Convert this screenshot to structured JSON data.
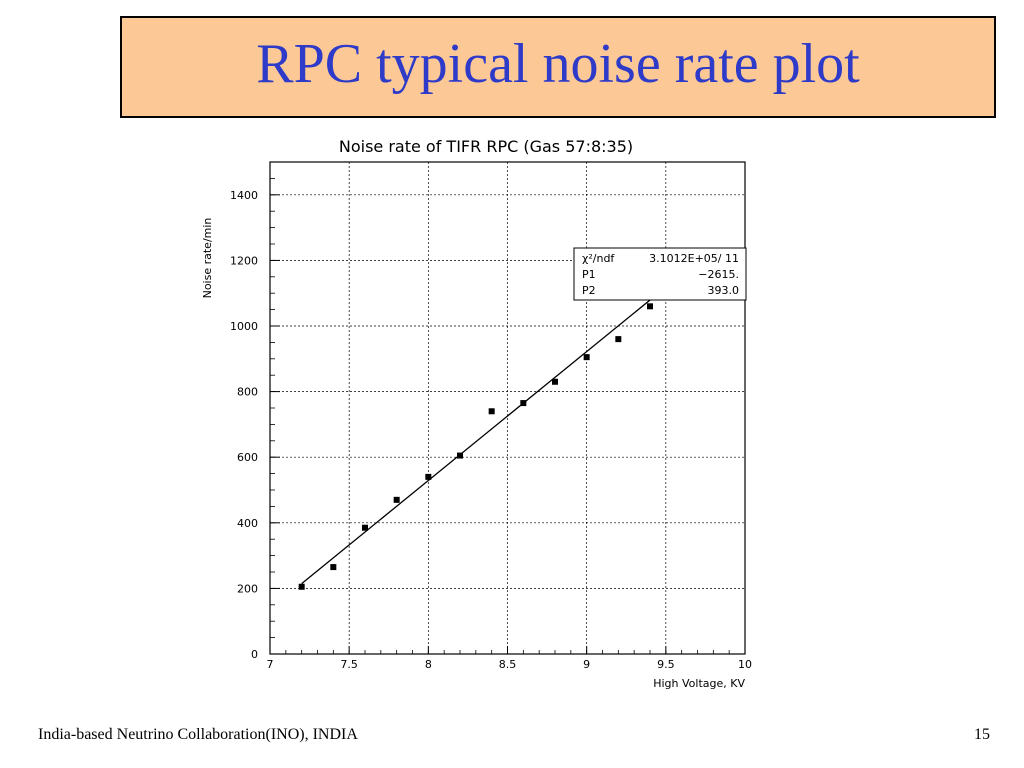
{
  "slide": {
    "title": "RPC typical noise rate plot",
    "footer": "India-based Neutrino Collaboration(INO), INDIA",
    "page_number": "15"
  },
  "chart_data": {
    "type": "scatter",
    "title": "Noise rate of TIFR RPC (Gas 57:8:35)",
    "xlabel": "High Voltage, KV",
    "ylabel": "Noise rate/min",
    "xlim": [
      7,
      10
    ],
    "ylim": [
      0,
      1500
    ],
    "grid": true,
    "x_ticks": [
      7,
      7.5,
      8,
      8.5,
      9,
      9.5,
      10
    ],
    "x_tick_labels": [
      "7",
      "7.5",
      "8",
      "8.5",
      "9",
      "9.5",
      "10"
    ],
    "y_ticks": [
      0,
      200,
      400,
      600,
      800,
      1000,
      1200,
      1400
    ],
    "y_tick_labels": [
      "0",
      "200",
      "400",
      "600",
      "800",
      "1000",
      "1200",
      "1400"
    ],
    "series": [
      {
        "x": [
          7.2,
          7.4,
          7.6,
          7.8,
          8.0,
          8.2,
          8.4,
          8.6,
          8.8,
          9.0,
          9.2,
          9.4
        ],
        "y": [
          205,
          265,
          385,
          470,
          540,
          605,
          740,
          765,
          830,
          905,
          960,
          1060
        ]
      }
    ],
    "fit": {
      "p1": -2615,
      "p2": 393.0,
      "x_start": 7.2,
      "x_end": 9.6
    },
    "stats_box": {
      "rows": [
        {
          "label": "χ²/ndf",
          "value": "3.1012E+05/ 11"
        },
        {
          "label": "P1",
          "value": "−2615."
        },
        {
          "label": "P2",
          "value": "393.0"
        }
      ]
    }
  }
}
